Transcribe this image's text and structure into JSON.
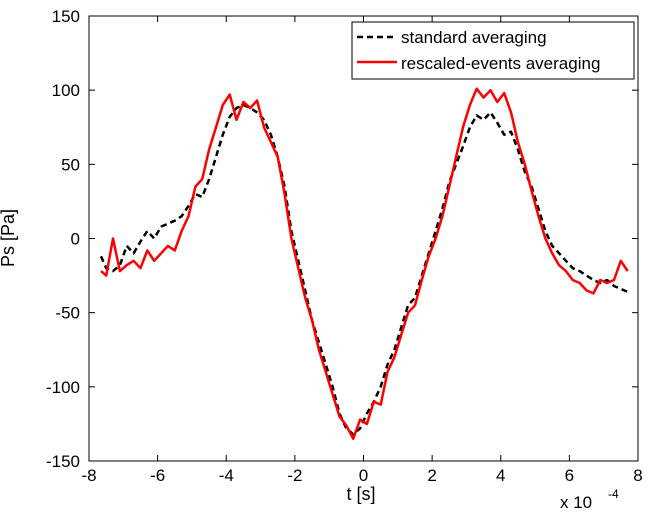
{
  "chart_data": {
    "type": "line",
    "title": "",
    "xlabel": "t [s]",
    "ylabel": "Ps [Pa]",
    "x_exponent_label": "x 10",
    "x_exponent_power": "-4",
    "xlim": [
      -8,
      8
    ],
    "ylim": [
      -150,
      150
    ],
    "x_ticks": [
      -8,
      -6,
      -4,
      -2,
      0,
      2,
      4,
      6,
      8
    ],
    "x_tick_labels": [
      "-8",
      "-6",
      "-4",
      "-2",
      "0",
      "2",
      "4",
      "6",
      "8"
    ],
    "y_ticks": [
      -150,
      -100,
      -50,
      0,
      50,
      100,
      150
    ],
    "y_tick_labels": [
      "-150",
      "-100",
      "-50",
      "0",
      "50",
      "100",
      "150"
    ],
    "grid": false,
    "legend_position": "top-right",
    "series": [
      {
        "name": "standard averaging",
        "color": "#000000",
        "dash": "dashed",
        "x": [
          -7.65,
          -7.5,
          -7.3,
          -7.1,
          -6.9,
          -6.7,
          -6.5,
          -6.3,
          -6.1,
          -5.9,
          -5.7,
          -5.5,
          -5.3,
          -5.1,
          -4.9,
          -4.7,
          -4.5,
          -4.3,
          -4.1,
          -3.9,
          -3.7,
          -3.5,
          -3.3,
          -3.1,
          -2.9,
          -2.7,
          -2.5,
          -2.3,
          -2.1,
          -1.9,
          -1.7,
          -1.5,
          -1.3,
          -1.1,
          -0.9,
          -0.7,
          -0.5,
          -0.3,
          -0.1,
          0.1,
          0.3,
          0.5,
          0.7,
          0.9,
          1.1,
          1.3,
          1.5,
          1.7,
          1.9,
          2.1,
          2.3,
          2.5,
          2.7,
          2.9,
          3.1,
          3.3,
          3.5,
          3.7,
          3.9,
          4.1,
          4.3,
          4.5,
          4.7,
          4.9,
          5.1,
          5.3,
          5.5,
          5.7,
          5.9,
          6.1,
          6.3,
          6.5,
          6.7,
          6.9,
          7.1,
          7.3,
          7.5,
          7.7
        ],
        "y": [
          -12,
          -20,
          -22,
          -18,
          -5,
          -10,
          -2,
          5,
          0,
          8,
          10,
          12,
          15,
          22,
          30,
          28,
          40,
          55,
          70,
          82,
          88,
          90,
          88,
          85,
          80,
          70,
          55,
          35,
          5,
          -15,
          -35,
          -55,
          -70,
          -85,
          -100,
          -118,
          -128,
          -132,
          -128,
          -118,
          -110,
          -100,
          -85,
          -75,
          -60,
          -45,
          -40,
          -25,
          -10,
          5,
          20,
          38,
          50,
          62,
          75,
          83,
          80,
          85,
          78,
          70,
          72,
          60,
          45,
          35,
          20,
          5,
          -5,
          -10,
          -15,
          -20,
          -22,
          -25,
          -28,
          -30,
          -28,
          -32,
          -34,
          -36
        ]
      },
      {
        "name": "rescaled-events averaging",
        "color": "#ff0000",
        "dash": "solid",
        "x": [
          -7.65,
          -7.5,
          -7.3,
          -7.1,
          -6.9,
          -6.7,
          -6.5,
          -6.3,
          -6.1,
          -5.9,
          -5.7,
          -5.5,
          -5.3,
          -5.1,
          -4.9,
          -4.7,
          -4.5,
          -4.3,
          -4.1,
          -3.9,
          -3.7,
          -3.5,
          -3.3,
          -3.1,
          -2.9,
          -2.7,
          -2.5,
          -2.3,
          -2.1,
          -1.9,
          -1.7,
          -1.5,
          -1.3,
          -1.1,
          -0.9,
          -0.7,
          -0.5,
          -0.3,
          -0.1,
          0.1,
          0.3,
          0.5,
          0.7,
          0.9,
          1.1,
          1.3,
          1.5,
          1.7,
          1.9,
          2.1,
          2.3,
          2.5,
          2.7,
          2.9,
          3.1,
          3.3,
          3.5,
          3.7,
          3.9,
          4.1,
          4.3,
          4.5,
          4.7,
          4.9,
          5.1,
          5.3,
          5.5,
          5.7,
          5.9,
          6.1,
          6.3,
          6.5,
          6.7,
          6.9,
          7.1,
          7.3,
          7.5,
          7.7
        ],
        "y": [
          -22,
          -25,
          0,
          -22,
          -18,
          -15,
          -20,
          -8,
          -15,
          -10,
          -5,
          -8,
          5,
          15,
          35,
          40,
          60,
          75,
          90,
          97,
          80,
          92,
          88,
          93,
          75,
          65,
          55,
          30,
          0,
          -20,
          -40,
          -55,
          -75,
          -90,
          -105,
          -120,
          -126,
          -135,
          -122,
          -125,
          -110,
          -112,
          -90,
          -80,
          -65,
          -50,
          -45,
          -28,
          -12,
          0,
          15,
          35,
          55,
          75,
          90,
          101,
          95,
          100,
          92,
          98,
          85,
          65,
          50,
          32,
          15,
          0,
          -10,
          -18,
          -22,
          -28,
          -30,
          -35,
          -37,
          -28,
          -30,
          -28,
          -15,
          -22
        ]
      }
    ]
  }
}
